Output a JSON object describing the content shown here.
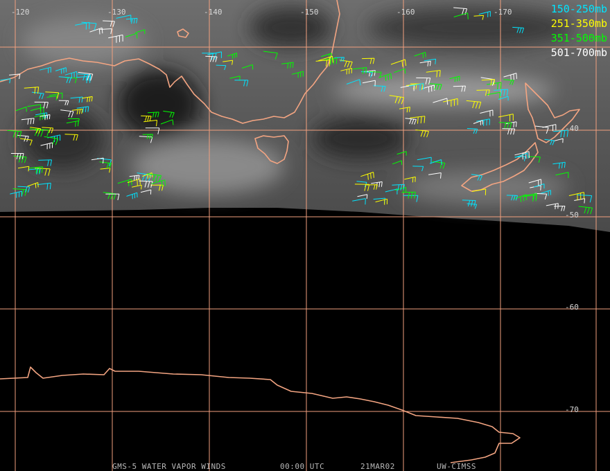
{
  "map": {
    "longitude_labels": [
      "-120",
      "-130",
      "-140",
      "-150",
      "-160",
      "-170"
    ],
    "latitude_labels": [
      "-40",
      "-50",
      "-60",
      "-70"
    ],
    "legend": [
      {
        "label": "150-250mb",
        "color": "#00e5ff"
      },
      {
        "label": "251-350mb",
        "color": "#ffff00"
      },
      {
        "label": "351-500mb",
        "color": "#00ff00"
      },
      {
        "label": "501-700mb",
        "color": "#ffffff"
      }
    ],
    "footer": [
      "GMS-5 WATER VAPOR WINDS",
      "00:00 UTC",
      "21MAR02",
      "UW-CIMSS"
    ]
  }
}
